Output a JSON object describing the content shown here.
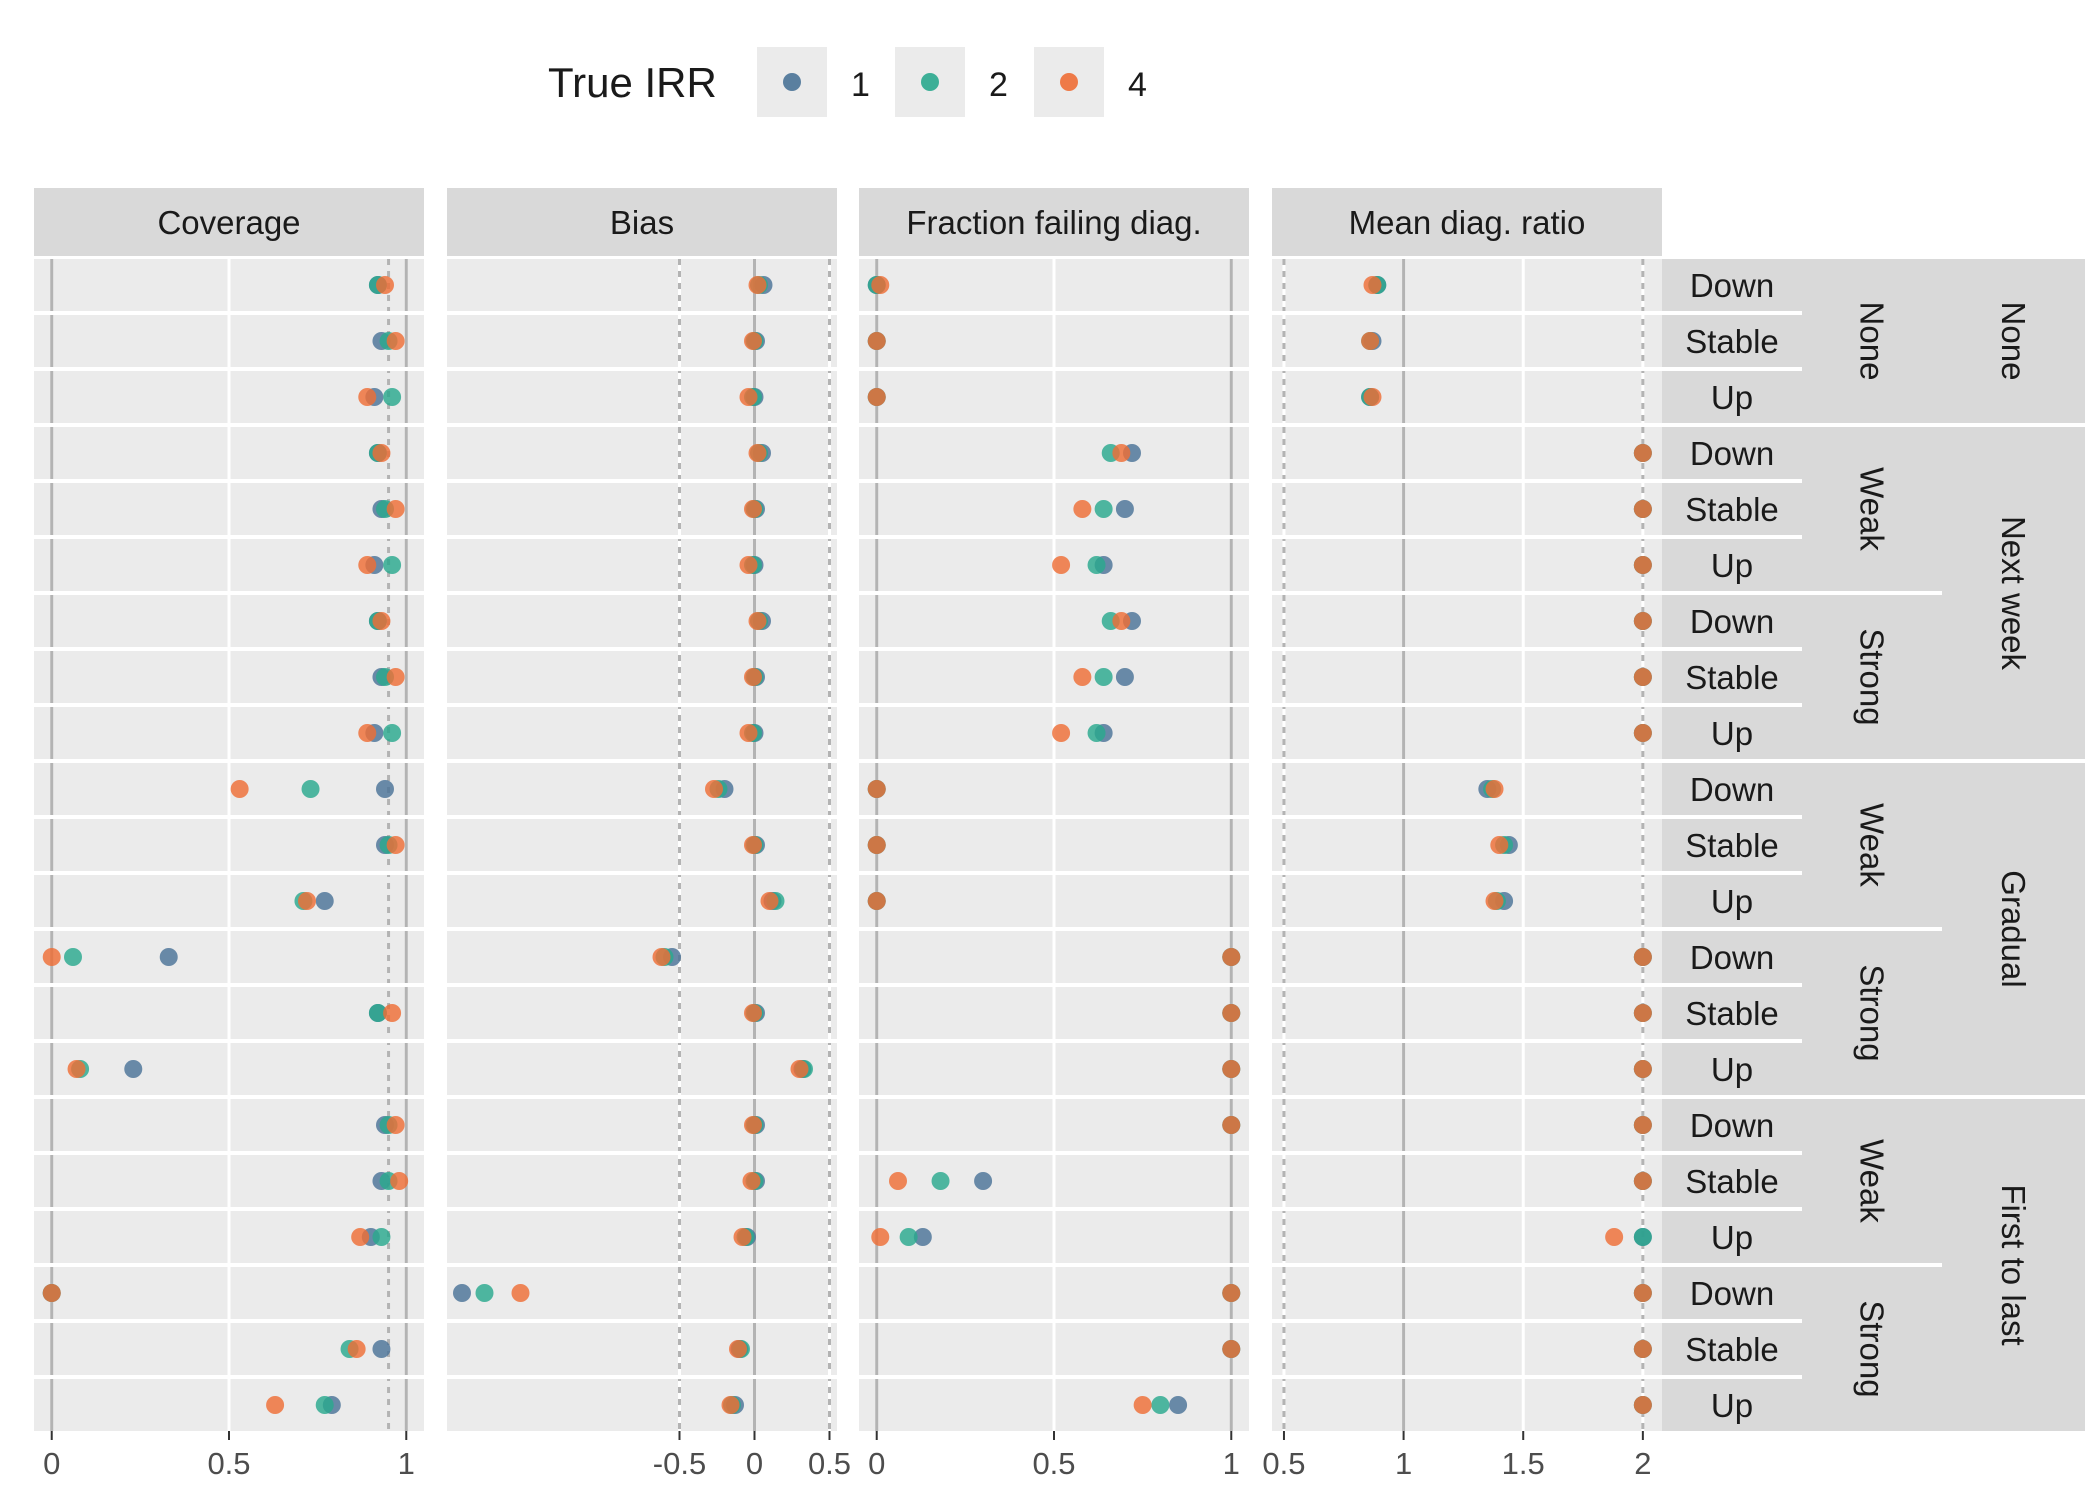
{
  "chart_data": {
    "type": "scatter",
    "legend": {
      "title": "True IRR",
      "placement": "top",
      "entries": [
        {
          "label": "1",
          "color": "#4A7397"
        },
        {
          "label": "2",
          "color": "#2AA88E"
        },
        {
          "label": "4",
          "color": "#EE6E36"
        }
      ]
    },
    "panels": [
      {
        "title": "Coverage",
        "xlim": [
          -0.05,
          1.05
        ],
        "ticks": [
          "0",
          "0.5",
          "1"
        ],
        "tick_values": [
          0,
          0.5,
          1
        ],
        "solid_refs": [
          0,
          1
        ],
        "dashed_refs": [
          0.95
        ]
      },
      {
        "title": "Bias",
        "xlim": [
          -2.05,
          0.55
        ],
        "ticks": [
          "-0.5",
          "0",
          "0.5"
        ],
        "tick_values": [
          -0.5,
          0,
          0.5
        ],
        "solid_refs": [
          0
        ],
        "dashed_refs": [
          -0.5,
          0.5
        ]
      },
      {
        "title": "Fraction failing diag.",
        "xlim": [
          -0.05,
          1.05
        ],
        "ticks": [
          "0",
          "0.5",
          "1"
        ],
        "tick_values": [
          0,
          0.5,
          1
        ],
        "solid_refs": [
          0,
          1
        ],
        "dashed_refs": []
      },
      {
        "title": "Mean diag. ratio",
        "xlim": [
          0.45,
          2.08
        ],
        "ticks": [
          "0.5",
          "1",
          "1.5",
          "2"
        ],
        "tick_values": [
          0.5,
          1,
          1.5,
          2
        ],
        "solid_refs": [
          1
        ],
        "dashed_refs": [
          0.5,
          2
        ]
      }
    ],
    "row_groups": [
      {
        "label": "None",
        "subgroups": [
          {
            "label": "None",
            "trends": [
              "Down",
              "Stable",
              "Up"
            ]
          }
        ]
      },
      {
        "label": "Next week",
        "subgroups": [
          {
            "label": "Weak",
            "trends": [
              "Down",
              "Stable",
              "Up"
            ]
          },
          {
            "label": "Strong",
            "trends": [
              "Down",
              "Stable",
              "Up"
            ]
          }
        ]
      },
      {
        "label": "Gradual",
        "subgroups": [
          {
            "label": "Weak",
            "trends": [
              "Down",
              "Stable",
              "Up"
            ]
          },
          {
            "label": "Strong",
            "trends": [
              "Down",
              "Stable",
              "Up"
            ]
          }
        ]
      },
      {
        "label": "First to last",
        "subgroups": [
          {
            "label": "Weak",
            "trends": [
              "Down",
              "Stable",
              "Up"
            ]
          },
          {
            "label": "Strong",
            "trends": [
              "Down",
              "Stable",
              "Up"
            ]
          }
        ]
      }
    ],
    "series": [
      {
        "name": "1",
        "coverage": [
          0.92,
          0.93,
          0.91,
          0.92,
          0.93,
          0.91,
          0.92,
          0.93,
          0.91,
          0.94,
          0.94,
          0.77,
          0.33,
          0.92,
          0.23,
          0.94,
          0.93,
          0.9,
          0.0,
          0.93,
          0.79
        ],
        "bias": [
          0.06,
          0.01,
          0.0,
          0.05,
          0.01,
          0.0,
          0.05,
          0.01,
          0.0,
          -0.2,
          0.01,
          0.12,
          -0.55,
          0.01,
          0.32,
          0.01,
          0.01,
          -0.05,
          -1.95,
          -0.1,
          -0.13
        ],
        "fraction_failing": [
          0.0,
          0.0,
          0.0,
          0.72,
          0.7,
          0.64,
          0.72,
          0.7,
          0.64,
          0.0,
          0.0,
          0.0,
          1.0,
          1.0,
          1.0,
          1.0,
          0.3,
          0.13,
          1.0,
          1.0,
          0.85
        ],
        "mean_ratio": [
          0.89,
          0.87,
          0.86,
          2.0,
          2.0,
          2.0,
          2.0,
          2.0,
          2.0,
          1.35,
          1.44,
          1.42,
          2.0,
          2.0,
          2.0,
          2.0,
          2.0,
          2.0,
          2.0,
          2.0,
          2.0
        ]
      },
      {
        "name": "2",
        "coverage": [
          0.92,
          0.95,
          0.96,
          0.92,
          0.94,
          0.96,
          0.92,
          0.94,
          0.96,
          0.73,
          0.95,
          0.71,
          0.06,
          0.92,
          0.08,
          0.95,
          0.95,
          0.93,
          0.0,
          0.84,
          0.77
        ],
        "bias": [
          0.03,
          0.0,
          -0.01,
          0.03,
          0.0,
          -0.01,
          0.03,
          0.0,
          -0.01,
          -0.24,
          0.0,
          0.14,
          -0.6,
          0.0,
          0.33,
          0.0,
          0.0,
          -0.06,
          -1.8,
          -0.09,
          -0.15
        ],
        "fraction_failing": [
          0.0,
          0.0,
          0.0,
          0.66,
          0.64,
          0.62,
          0.66,
          0.64,
          0.62,
          0.0,
          0.0,
          0.0,
          1.0,
          1.0,
          1.0,
          1.0,
          0.18,
          0.09,
          1.0,
          1.0,
          0.8
        ],
        "mean_ratio": [
          0.89,
          0.86,
          0.86,
          2.0,
          2.0,
          2.0,
          2.0,
          2.0,
          2.0,
          1.37,
          1.42,
          1.39,
          2.0,
          2.0,
          2.0,
          2.0,
          2.0,
          2.0,
          2.0,
          2.0,
          2.0
        ]
      },
      {
        "name": "4",
        "coverage": [
          0.94,
          0.97,
          0.89,
          0.93,
          0.97,
          0.89,
          0.93,
          0.97,
          0.89,
          0.53,
          0.97,
          0.72,
          0.0,
          0.96,
          0.07,
          0.97,
          0.98,
          0.87,
          0.0,
          0.86,
          0.63
        ],
        "bias": [
          0.02,
          -0.01,
          -0.04,
          0.02,
          -0.01,
          -0.04,
          0.02,
          -0.01,
          -0.04,
          -0.27,
          -0.01,
          0.1,
          -0.62,
          -0.01,
          0.3,
          -0.01,
          -0.02,
          -0.08,
          -1.56,
          -0.11,
          -0.16
        ],
        "fraction_failing": [
          0.01,
          0.0,
          0.0,
          0.69,
          0.58,
          0.52,
          0.69,
          0.58,
          0.52,
          0.0,
          0.0,
          0.0,
          1.0,
          1.0,
          1.0,
          1.0,
          0.06,
          0.01,
          1.0,
          1.0,
          0.75
        ],
        "mean_ratio": [
          0.87,
          0.86,
          0.87,
          2.0,
          2.0,
          2.0,
          2.0,
          2.0,
          2.0,
          1.38,
          1.4,
          1.38,
          2.0,
          2.0,
          2.0,
          2.0,
          2.0,
          1.88,
          2.0,
          2.0,
          2.0
        ]
      }
    ],
    "grid": true
  }
}
